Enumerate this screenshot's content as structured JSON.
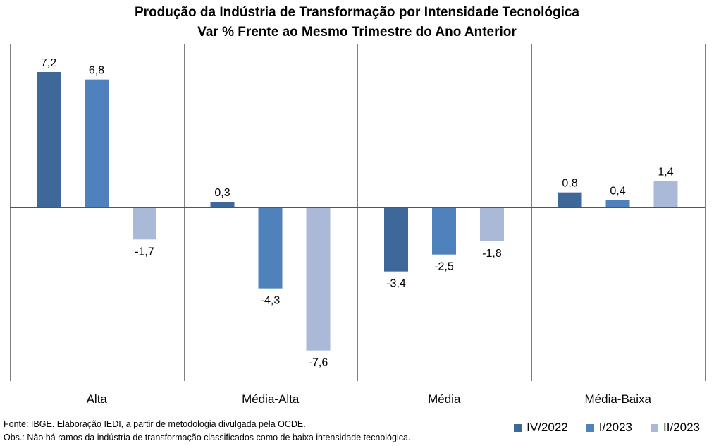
{
  "chart_data": {
    "type": "bar",
    "title": "Produção da Indústria de Transformação por Intensidade Tecnológica",
    "subtitle": "Var % Frente ao Mesmo Trimestre do Ano Anterior",
    "categories": [
      "Alta",
      "Média-Alta",
      "Média",
      "Média-Baixa"
    ],
    "series": [
      {
        "name": "IV/2022",
        "color": "#3d6899",
        "values": [
          7.2,
          0.3,
          -3.4,
          0.8
        ]
      },
      {
        "name": "I/2023",
        "color": "#4f81bd",
        "values": [
          6.8,
          -4.3,
          -2.5,
          0.4
        ]
      },
      {
        "name": "II/2023",
        "color": "#aab9d8",
        "values": [
          -1.7,
          -7.6,
          -1.8,
          1.4
        ]
      }
    ],
    "ylim": [
      -8.7,
      8.7
    ],
    "value_labels": true,
    "decimal_separator": ",",
    "grid": false,
    "legend_position": "bottom-right"
  },
  "footnotes": {
    "source": "Fonte: IBGE. Elaboração IEDI, a partir de metodologia divulgada pela OCDE.",
    "note": "Obs.: Não há ramos da indústria de transformação classificados como de baixa intensidade tecnológica."
  }
}
